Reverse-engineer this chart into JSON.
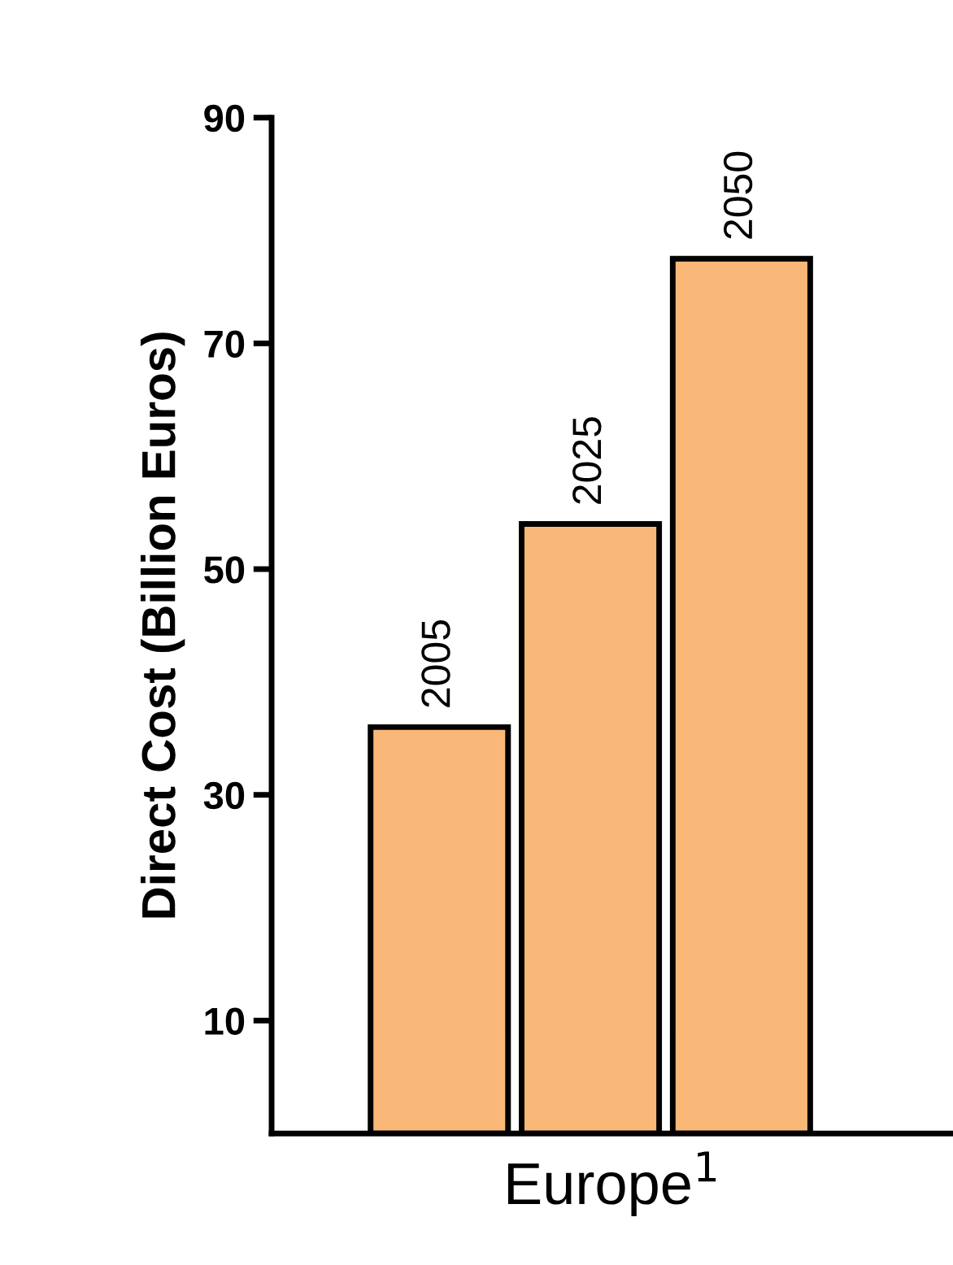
{
  "chart_data": {
    "type": "bar",
    "categories": [
      "2005",
      "2025",
      "2050"
    ],
    "values": [
      36,
      54,
      77.5
    ],
    "color": "#f9b878",
    "xlabel": "Europe$^{1}$",
    "ylabel": "Direct Cost (Billion Euros)",
    "ylim": [
      0,
      90
    ],
    "yticks": [
      10,
      30,
      50,
      70,
      90
    ],
    "grid": false,
    "legend": false
  }
}
